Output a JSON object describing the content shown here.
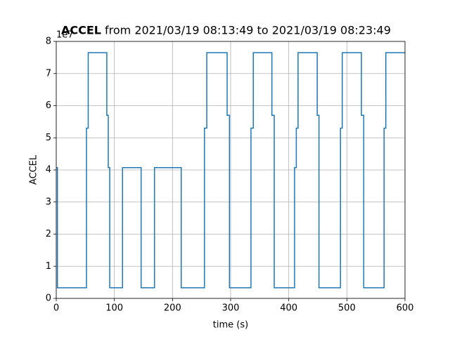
{
  "chart_data": {
    "type": "line",
    "drawstyle": "steps-post",
    "title_bold": "ACCEL",
    "title": "from 2021/03/19 08:13:49 to 2021/03/19 08:23:49",
    "y_offset_label": "1e7",
    "xlabel": "time (s)",
    "ylabel": "ACCEL",
    "x": [
      0,
      2,
      52,
      55,
      87,
      89.5,
      92,
      114,
      146,
      169,
      215,
      255,
      259,
      294,
      298,
      335,
      339,
      371,
      375,
      410,
      413,
      416,
      449,
      452,
      489,
      492,
      525,
      529,
      564,
      567,
      600
    ],
    "series": [
      {
        "color": "#1f77b4",
        "values": [
          4.07,
          0.33,
          5.3,
          7.65,
          5.7,
          4.07,
          0.33,
          4.07,
          0.33,
          4.07,
          0.33,
          5.3,
          7.65,
          5.7,
          0.33,
          5.3,
          7.65,
          5.7,
          0.33,
          4.07,
          5.3,
          7.65,
          5.7,
          0.33,
          5.3,
          7.65,
          5.7,
          0.33,
          5.3,
          7.65,
          7.65
        ]
      }
    ],
    "xlim": [
      0,
      600
    ],
    "ylim": [
      0,
      8
    ],
    "xticks": [
      0,
      100,
      200,
      300,
      400,
      500,
      600
    ],
    "yticks": [
      0,
      1,
      2,
      3,
      4,
      5,
      6,
      7,
      8
    ],
    "grid": true
  }
}
